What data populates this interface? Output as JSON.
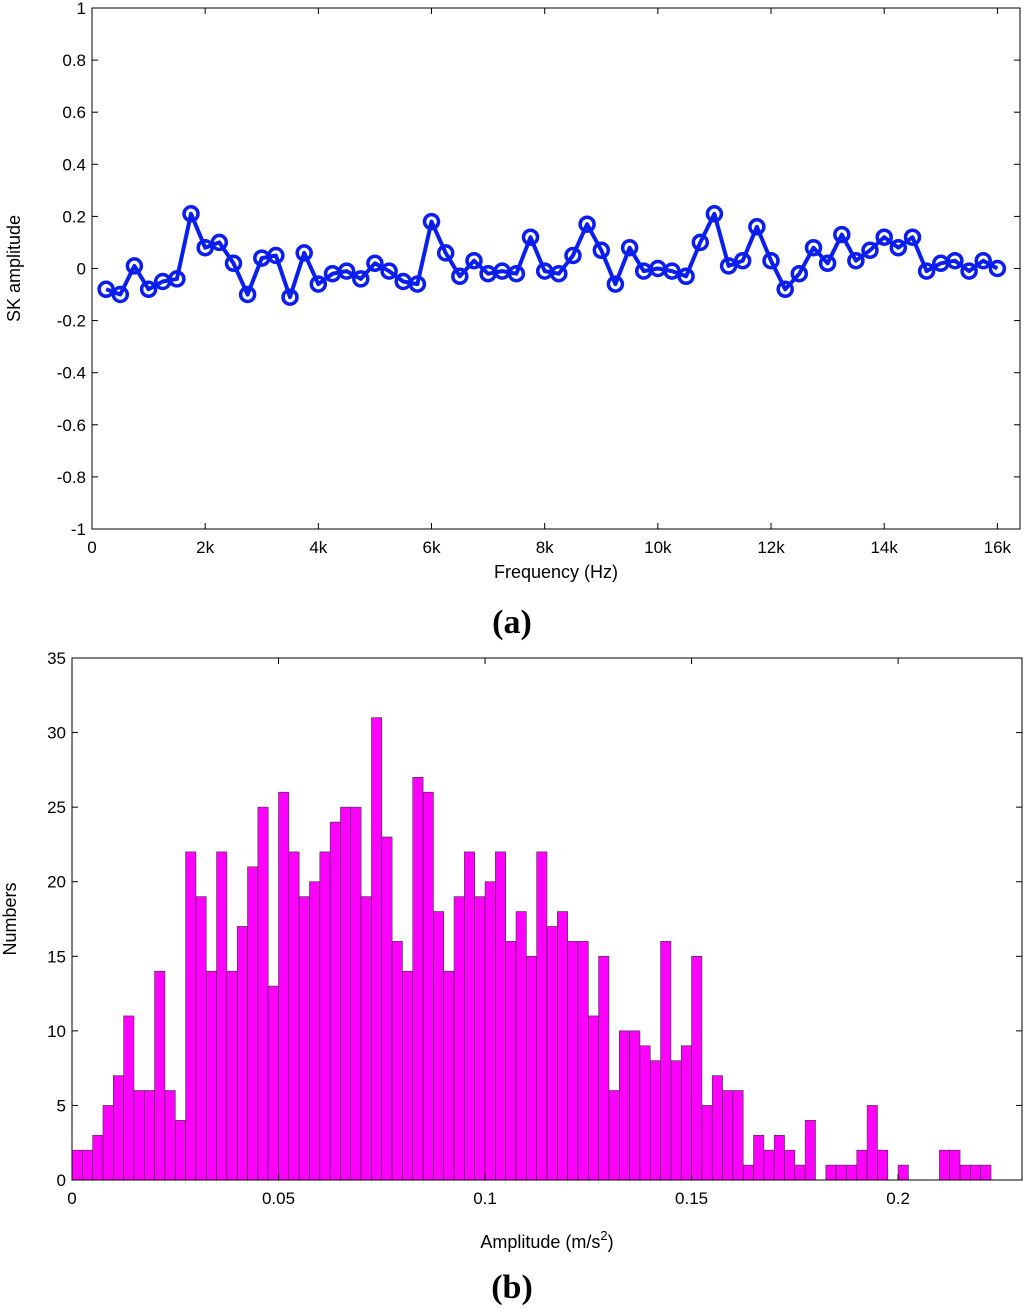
{
  "chart_data": [
    {
      "type": "line",
      "panel_label": "(a)",
      "xlabel": "Frequency (Hz)",
      "ylabel": "SK amplitude",
      "xlim": [
        0,
        16400
      ],
      "ylim": [
        -1,
        1
      ],
      "x_ticks": [
        {
          "value": 0,
          "label": "0"
        },
        {
          "value": 2000,
          "label": "2k"
        },
        {
          "value": 4000,
          "label": "4k"
        },
        {
          "value": 6000,
          "label": "6k"
        },
        {
          "value": 8000,
          "label": "8k"
        },
        {
          "value": 10000,
          "label": "10k"
        },
        {
          "value": 12000,
          "label": "12k"
        },
        {
          "value": 14000,
          "label": "14k"
        },
        {
          "value": 16000,
          "label": "16k"
        }
      ],
      "y_ticks": [
        {
          "value": 1,
          "label": "1"
        },
        {
          "value": 0.8,
          "label": "0.8"
        },
        {
          "value": 0.6,
          "label": "0.6"
        },
        {
          "value": 0.4,
          "label": "0.4"
        },
        {
          "value": 0.2,
          "label": "0.2"
        },
        {
          "value": 0,
          "label": "0"
        },
        {
          "value": -0.2,
          "label": "-0.2"
        },
        {
          "value": -0.4,
          "label": "-0.4"
        },
        {
          "value": -0.6,
          "label": "-0.6"
        },
        {
          "value": -0.8,
          "label": "-0.8"
        },
        {
          "value": -1,
          "label": "-1"
        }
      ],
      "grid": false,
      "color": "#0a1ef0",
      "marker": "circle",
      "x": [
        250,
        500,
        750,
        1000,
        1250,
        1500,
        1750,
        2000,
        2250,
        2500,
        2750,
        3000,
        3250,
        3500,
        3750,
        4000,
        4250,
        4500,
        4750,
        5000,
        5250,
        5500,
        5750,
        6000,
        6250,
        6500,
        6750,
        7000,
        7250,
        7500,
        7750,
        8000,
        8250,
        8500,
        8750,
        9000,
        9250,
        9500,
        9750,
        10000,
        10250,
        10500,
        10750,
        11000,
        11250,
        11500,
        11750,
        12000,
        12250,
        12500,
        12750,
        13000,
        13250,
        13500,
        13750,
        14000,
        14250,
        14500,
        14750,
        15000,
        15250,
        15500,
        15750,
        16000
      ],
      "y": [
        -0.08,
        -0.1,
        0.01,
        -0.08,
        -0.05,
        -0.04,
        0.21,
        0.08,
        0.1,
        0.02,
        -0.1,
        0.04,
        0.05,
        -0.11,
        0.06,
        -0.06,
        -0.02,
        -0.01,
        -0.04,
        0.02,
        -0.01,
        -0.05,
        -0.06,
        0.18,
        0.06,
        -0.03,
        0.03,
        -0.02,
        -0.01,
        -0.02,
        0.12,
        -0.01,
        -0.02,
        0.05,
        0.17,
        0.07,
        -0.06,
        0.08,
        -0.01,
        0.0,
        -0.01,
        -0.03,
        0.1,
        0.21,
        0.01,
        0.03,
        0.16,
        0.03,
        -0.08,
        -0.02,
        0.08,
        0.02,
        0.13,
        0.03,
        0.07,
        0.12,
        0.08,
        0.12,
        -0.01,
        0.02,
        0.03,
        -0.01,
        0.03,
        0.0
      ]
    },
    {
      "type": "bar",
      "panel_label": "(b)",
      "xlabel": "Amplitude (m/s",
      "xlabel_superscript": "2",
      "xlabel_suffix": ")",
      "ylabel": "Numbers",
      "xlim": [
        0,
        0.23
      ],
      "ylim": [
        0,
        35
      ],
      "bin_start": 0,
      "bin_width": 0.0025,
      "x_ticks": [
        {
          "value": 0,
          "label": "0"
        },
        {
          "value": 0.05,
          "label": "0.05"
        },
        {
          "value": 0.1,
          "label": "0.1"
        },
        {
          "value": 0.15,
          "label": "0.15"
        },
        {
          "value": 0.2,
          "label": "0.2"
        }
      ],
      "y_ticks": [
        {
          "value": 0,
          "label": "0"
        },
        {
          "value": 5,
          "label": "5"
        },
        {
          "value": 10,
          "label": "10"
        },
        {
          "value": 15,
          "label": "15"
        },
        {
          "value": 20,
          "label": "20"
        },
        {
          "value": 25,
          "label": "25"
        },
        {
          "value": 30,
          "label": "30"
        },
        {
          "value": 35,
          "label": "35"
        }
      ],
      "grid": false,
      "color": "#ff00ff",
      "edge_color": "#333333",
      "values": [
        2,
        2,
        3,
        5,
        7,
        11,
        6,
        6,
        14,
        6,
        4,
        22,
        19,
        14,
        22,
        14,
        17,
        21,
        25,
        13,
        26,
        22,
        19,
        20,
        22,
        24,
        25,
        25,
        19,
        31,
        23,
        16,
        14,
        27,
        26,
        18,
        14,
        19,
        22,
        19,
        20,
        22,
        16,
        18,
        15,
        22,
        17,
        18,
        16,
        16,
        11,
        15,
        6,
        10,
        10,
        9,
        8,
        16,
        8,
        9,
        15,
        5,
        7,
        6,
        6,
        1,
        3,
        2,
        3,
        2,
        1,
        4,
        0,
        1,
        1,
        1,
        2,
        5,
        2,
        0,
        1,
        0,
        0,
        0,
        2,
        2,
        1,
        1,
        1
      ]
    }
  ]
}
